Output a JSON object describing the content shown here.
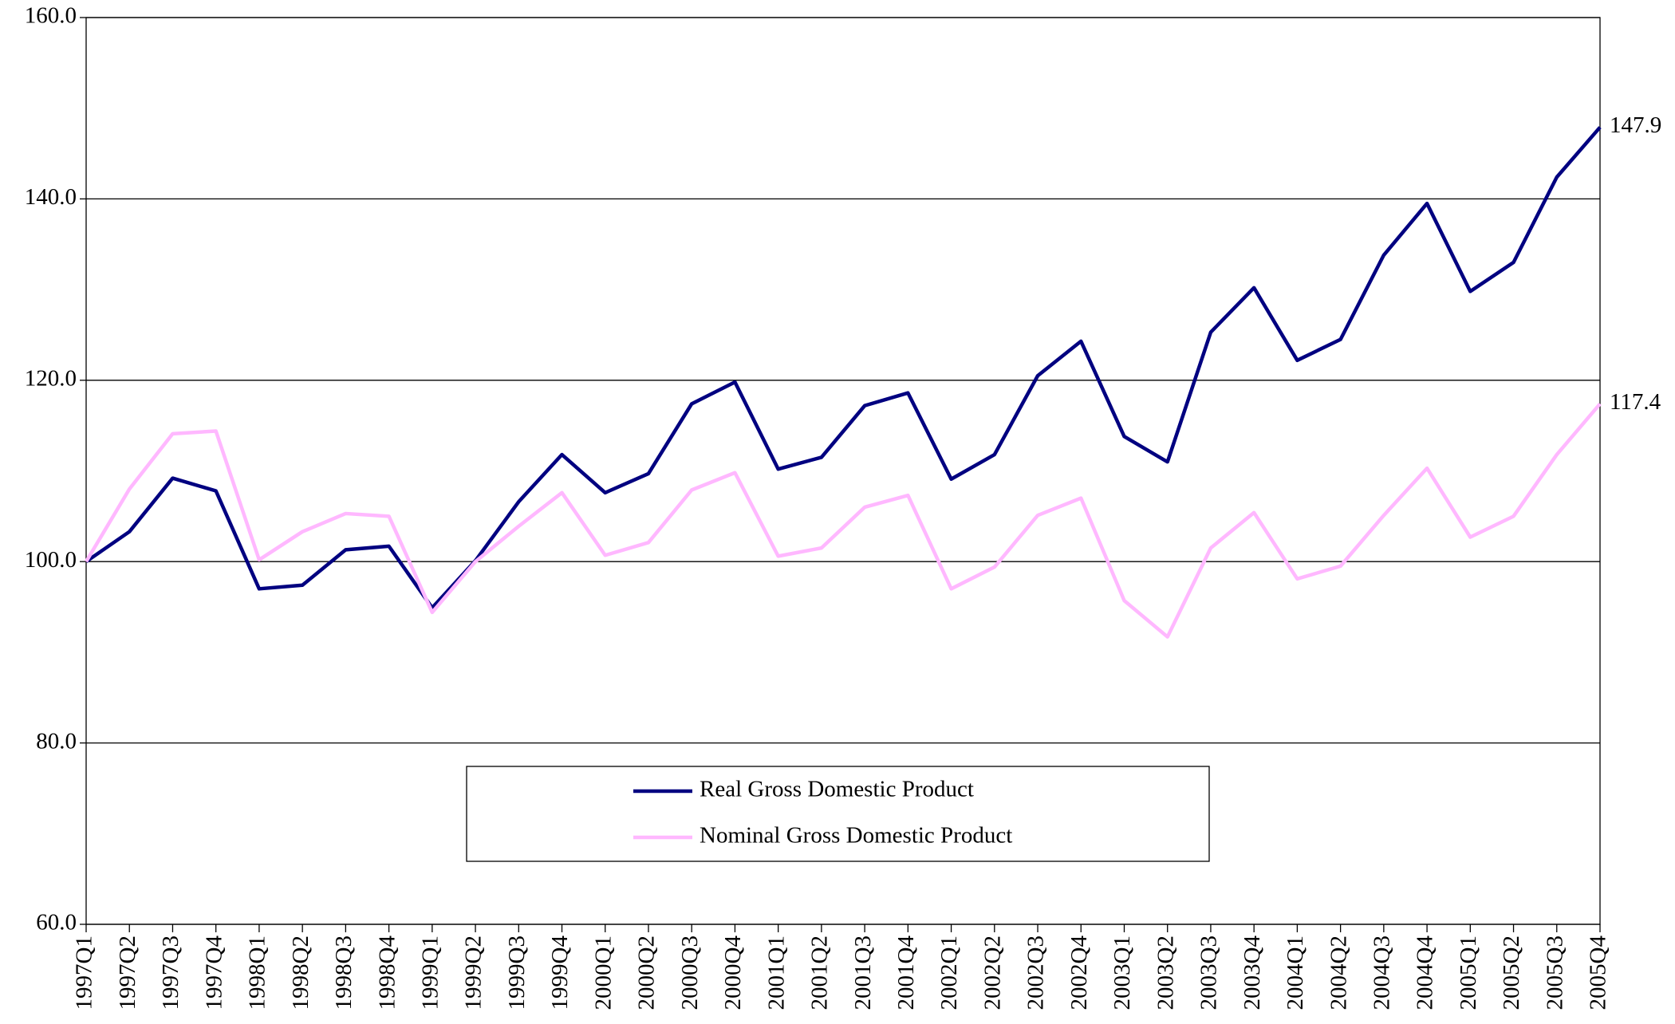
{
  "chart_data": {
    "type": "line",
    "categories": [
      "1997Q1",
      "1997Q2",
      "1997Q3",
      "1997Q4",
      "1998Q1",
      "1998Q2",
      "1998Q3",
      "1998Q4",
      "1999Q1",
      "1999Q2",
      "1999Q3",
      "1999Q4",
      "2000Q1",
      "2000Q2",
      "2000Q3",
      "2000Q4",
      "2001Q1",
      "2001Q2",
      "2001Q3",
      "2001Q4",
      "2002Q1",
      "2002Q2",
      "2002Q3",
      "2002Q4",
      "2003Q1",
      "2003Q2",
      "2003Q3",
      "2003Q4",
      "2004Q1",
      "2004Q2",
      "2004Q3",
      "2004Q4",
      "2005Q1",
      "2005Q2",
      "2005Q3",
      "2005Q4"
    ],
    "series": [
      {
        "name": "Real Gross Domestic Product",
        "color": "#000080",
        "values": [
          100.0,
          103.3,
          109.2,
          107.8,
          97.0,
          97.4,
          101.3,
          101.7,
          94.9,
          100.1,
          106.6,
          111.8,
          107.6,
          109.7,
          117.4,
          119.8,
          110.2,
          111.5,
          117.2,
          118.6,
          109.1,
          111.8,
          120.5,
          124.3,
          113.8,
          111.0,
          125.3,
          130.2,
          122.2,
          124.5,
          133.8,
          139.5,
          129.8,
          133.0,
          142.4,
          147.9
        ]
      },
      {
        "name": "Nominal Gross Domestic Product",
        "color": "#ffb8ff",
        "values": [
          100.0,
          108.0,
          114.1,
          114.4,
          100.2,
          103.3,
          105.3,
          105.0,
          94.4,
          100.0,
          103.9,
          107.6,
          100.7,
          102.1,
          107.9,
          109.8,
          100.6,
          101.5,
          106.0,
          107.3,
          97.0,
          99.4,
          105.1,
          107.0,
          95.7,
          91.7,
          101.5,
          105.4,
          98.1,
          99.5,
          105.1,
          110.3,
          102.7,
          105.0,
          111.8,
          117.4
        ]
      }
    ],
    "ylim": [
      60,
      160
    ],
    "yticks": [
      {
        "value": 60,
        "label": "60.0"
      },
      {
        "value": 80,
        "label": "80.0"
      },
      {
        "value": 100,
        "label": "100.0"
      },
      {
        "value": 120,
        "label": "120.0"
      },
      {
        "value": 140,
        "label": "140.0"
      },
      {
        "value": 160,
        "label": "160.0"
      }
    ],
    "grid": true
  }
}
